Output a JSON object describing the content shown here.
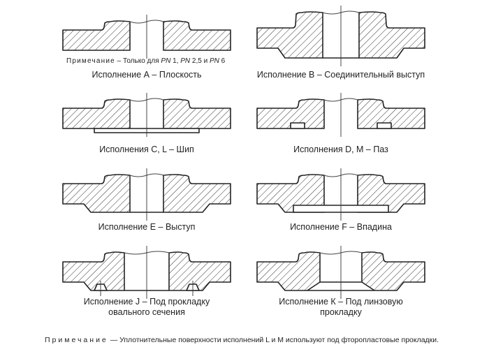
{
  "note_top": {
    "prefix": "Примечание",
    "text_1": " – Только для ",
    "pn": "PN",
    "v1": " 1, ",
    "v2": " 2,5 и ",
    "v3": " 6"
  },
  "labels": {
    "A": "Исполнение А – Плоскость",
    "B": "Исполнение В – Соединительный выступ",
    "C": "Исполнения С, L – Шип",
    "D": "Исполнения D, M – Паз",
    "E": "Исполнение Е – Выступ",
    "F": "Исполнение F – Впадина",
    "J_1": "Исполнение J – Под прокладку",
    "J_2": "овального сечения",
    "K_1": "Исполнение К – Под линзовую",
    "K_2": "прокладку"
  },
  "footnote": {
    "prefix": "Примечание",
    "text": " — Уплотнительные поверхности исполнений L и M используют под фторопластовые прокладки."
  },
  "colors": {
    "line": "#222222",
    "background": "#ffffff"
  }
}
